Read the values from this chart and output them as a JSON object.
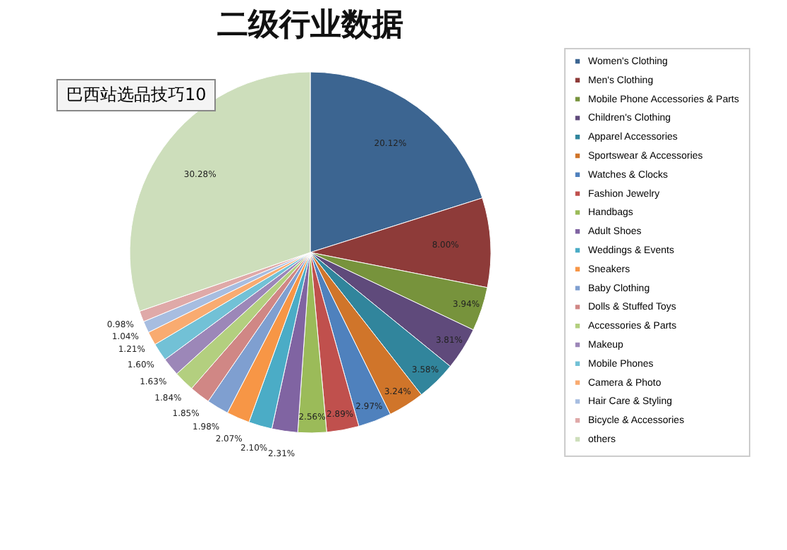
{
  "chart_data": {
    "type": "pie",
    "title": "二级行业数据",
    "annotations": [
      "巴西站选品技巧10"
    ],
    "categories": [
      "Women's Clothing",
      "Men's Clothing",
      "Mobile Phone Accessories & Parts",
      "Children's Clothing",
      "Apparel Accessories",
      "Sportswear & Accessories",
      "Watches & Clocks",
      "Fashion Jewelry",
      "Handbags",
      "Adult Shoes",
      "Weddings & Events",
      "Sneakers",
      "Baby Clothing",
      "Dolls & Stuffed Toys",
      "Accessories & Parts",
      "Makeup",
      "Mobile Phones",
      "Camera & Photo",
      "Hair Care & Styling",
      "Bicycle & Accessories",
      "others"
    ],
    "values": [
      20.12,
      8.0,
      3.94,
      3.81,
      3.58,
      3.24,
      2.97,
      2.89,
      2.56,
      2.31,
      2.1,
      2.07,
      1.98,
      1.85,
      1.84,
      1.63,
      1.6,
      1.21,
      1.04,
      0.98,
      30.28
    ],
    "value_labels": [
      "20.12%",
      "8.00%",
      "3.94%",
      "3.81%",
      "3.58%",
      "3.24%",
      "2.97%",
      "2.89%",
      "2.56%",
      "2.31%",
      "2.10%",
      "2.07%",
      "1.98%",
      "1.85%",
      "1.84%",
      "1.63%",
      "1.60%",
      "1.21%",
      "1.04%",
      "0.98%",
      "30.28%"
    ],
    "colors": [
      "#3c6591",
      "#8e3b39",
      "#77933c",
      "#5f4a7b",
      "#31859c",
      "#d0752a",
      "#4f81bd",
      "#c0504d",
      "#9bbb59",
      "#8064a2",
      "#4bacc6",
      "#f79646",
      "#7f9fd0",
      "#d08785",
      "#b3cf7f",
      "#9c87b8",
      "#72c1d6",
      "#f9ab70",
      "#a7bde0",
      "#dfa9a8",
      "#cddebb"
    ],
    "legend": "right"
  }
}
